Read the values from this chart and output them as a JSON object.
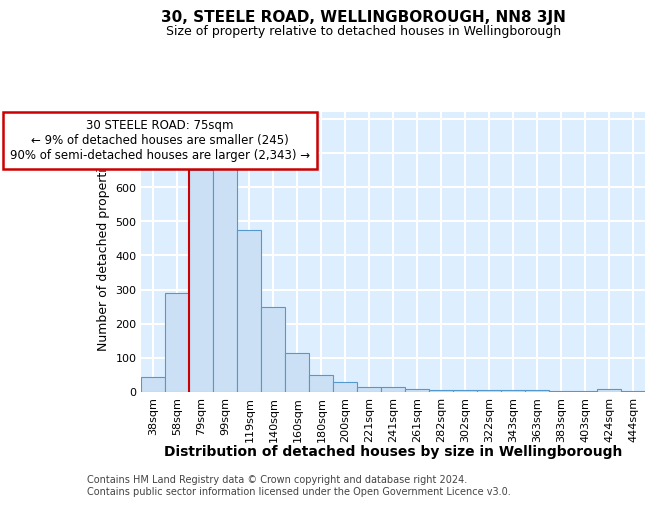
{
  "title": "30, STEELE ROAD, WELLINGBOROUGH, NN8 3JN",
  "subtitle": "Size of property relative to detached houses in Wellingborough",
  "xlabel": "Distribution of detached houses by size in Wellingborough",
  "ylabel": "Number of detached properties",
  "footnote1": "Contains HM Land Registry data © Crown copyright and database right 2024.",
  "footnote2": "Contains public sector information licensed under the Open Government Licence v3.0.",
  "categories": [
    "38sqm",
    "58sqm",
    "79sqm",
    "99sqm",
    "119sqm",
    "140sqm",
    "160sqm",
    "180sqm",
    "200sqm",
    "221sqm",
    "241sqm",
    "261sqm",
    "282sqm",
    "302sqm",
    "322sqm",
    "343sqm",
    "363sqm",
    "383sqm",
    "403sqm",
    "424sqm",
    "444sqm"
  ],
  "values": [
    45,
    290,
    650,
    665,
    475,
    250,
    113,
    50,
    28,
    15,
    15,
    10,
    5,
    5,
    5,
    5,
    5,
    3,
    3,
    8,
    3
  ],
  "bar_facecolor": "#cce0f5",
  "bar_edge_color": "#5599cc",
  "plot_bg_color": "#ddeeff",
  "grid_color": "#ffffff",
  "annotation_line1": "30 STEELE ROAD: 75sqm",
  "annotation_line2": "← 9% of detached houses are smaller (245)",
  "annotation_line3": "90% of semi-detached houses are larger (2,343) →",
  "annotation_box_facecolor": "#ffffff",
  "annotation_box_edgecolor": "#cc0000",
  "vline_color": "#cc0000",
  "vline_x_index": 2.0,
  "ylim": [
    0,
    820
  ],
  "yticks": [
    0,
    100,
    200,
    300,
    400,
    500,
    600,
    700,
    800
  ],
  "title_fontsize": 11,
  "subtitle_fontsize": 9,
  "ylabel_fontsize": 9,
  "xlabel_fontsize": 10,
  "tick_fontsize": 8,
  "annot_fontsize": 8.5,
  "footnote_fontsize": 7
}
